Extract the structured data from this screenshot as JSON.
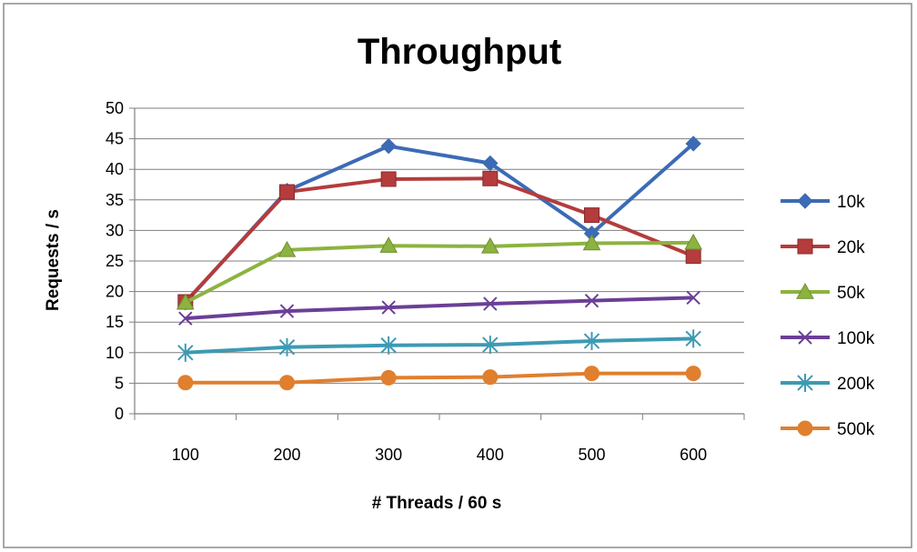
{
  "chart_data": {
    "type": "line",
    "title": "Throughput",
    "xlabel": "# Threads / 60 s",
    "ylabel": "Requests / s",
    "categories": [
      "100",
      "200",
      "300",
      "400",
      "500",
      "600"
    ],
    "ylim": [
      0,
      50
    ],
    "yticks": [
      "0",
      "5",
      "10",
      "15",
      "20",
      "25",
      "30",
      "35",
      "40",
      "45",
      "50"
    ],
    "grid": true,
    "legend_position": "right",
    "series": [
      {
        "name": "10k",
        "color": "#3c6bb5",
        "marker": "diamond",
        "values": [
          18.2,
          36.5,
          43.8,
          41.0,
          29.5,
          44.2
        ]
      },
      {
        "name": "20k",
        "color": "#b43c3c",
        "marker": "square",
        "values": [
          18.3,
          36.3,
          38.4,
          38.5,
          32.5,
          25.8
        ]
      },
      {
        "name": "50k",
        "color": "#8cb33f",
        "marker": "triangle",
        "values": [
          18.2,
          26.8,
          27.5,
          27.4,
          27.9,
          28.0
        ]
      },
      {
        "name": "100k",
        "color": "#6b3f96",
        "marker": "x",
        "values": [
          15.6,
          16.8,
          17.4,
          18.0,
          18.5,
          19.0
        ]
      },
      {
        "name": "200k",
        "color": "#3d9ab3",
        "marker": "star",
        "values": [
          10.0,
          10.9,
          11.2,
          11.3,
          11.9,
          12.3
        ]
      },
      {
        "name": "500k",
        "color": "#e07f2e",
        "marker": "circle",
        "values": [
          5.1,
          5.1,
          5.9,
          6.0,
          6.6,
          6.6
        ]
      }
    ]
  }
}
